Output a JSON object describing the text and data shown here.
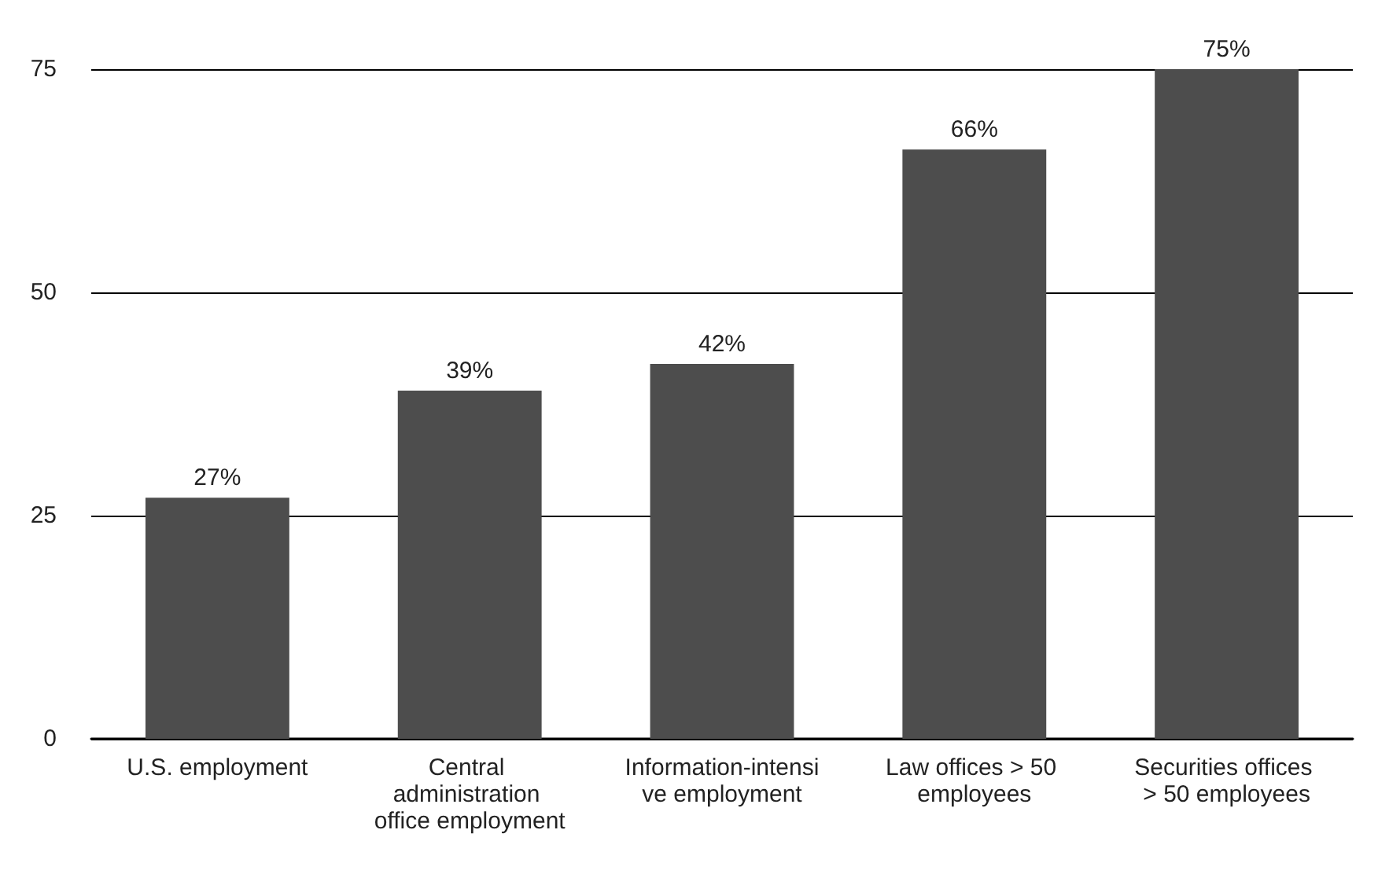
{
  "chart_data": {
    "type": "bar",
    "categories": [
      "U.S. employment",
      "Central administration office employment",
      "Information-intensive employment",
      "Law offices > 50 employees",
      "Securities offices > 50 employees"
    ],
    "values": [
      27,
      39,
      42,
      66,
      75
    ],
    "value_labels": [
      "27%",
      "39%",
      "42%",
      "66%",
      "75%"
    ],
    "color": "#4d4d4d",
    "ylim": [
      0,
      75
    ],
    "yticks": [
      0,
      25,
      50,
      75
    ],
    "grid": "y"
  }
}
